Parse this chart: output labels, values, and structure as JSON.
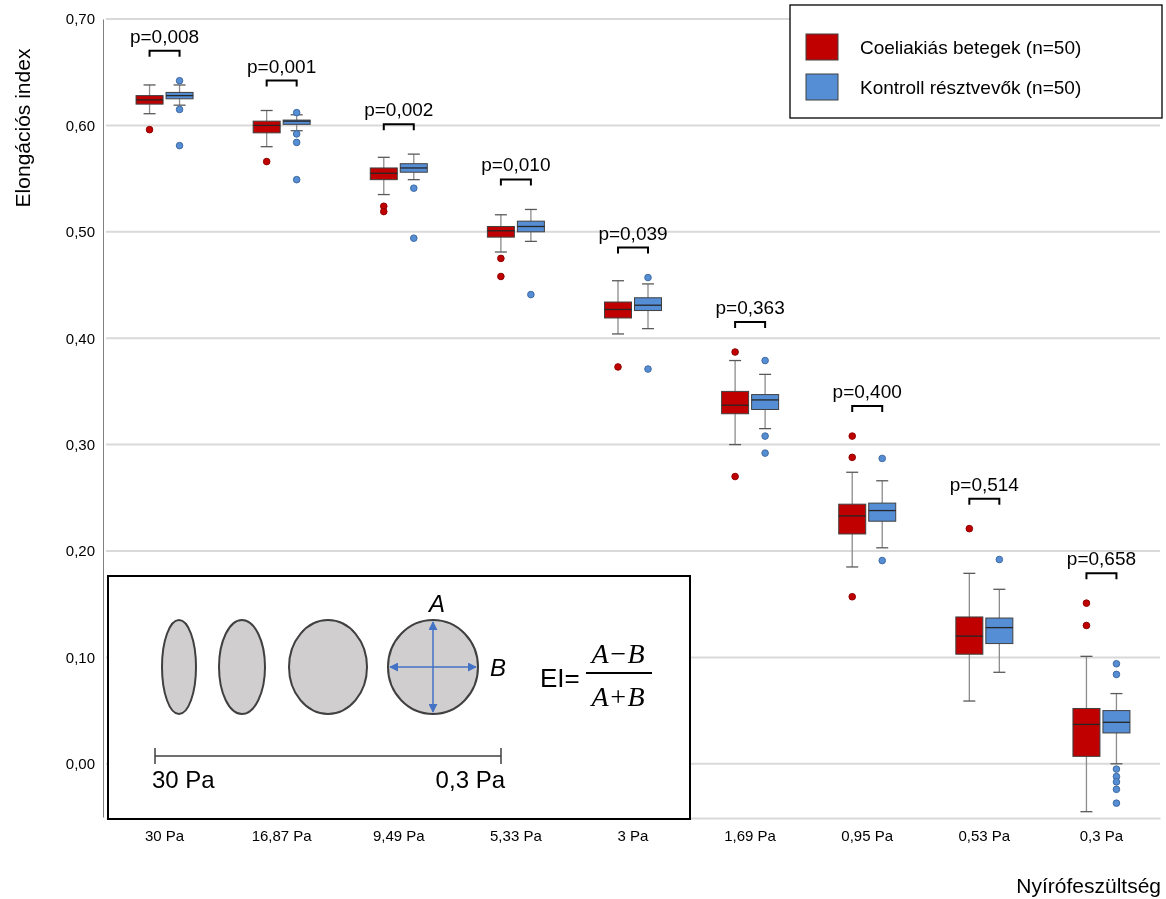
{
  "chart_data": {
    "type": "box",
    "ylabel": "Elongációs index",
    "xlabel": "Nyírófeszültség",
    "categories": [
      "30 Pa",
      "16,87 Pa",
      "9,49 Pa",
      "5,33 Pa",
      "3 Pa",
      "1,69 Pa",
      "0,95 Pa",
      "0,53 Pa",
      "0,3 Pa"
    ],
    "ylim": [
      -0.05,
      0.7
    ],
    "yticks": [
      {
        "value": 0,
        "label": "0,00"
      },
      {
        "value": 0.1,
        "label": "0,10"
      },
      {
        "value": 0.2,
        "label": "0,20"
      },
      {
        "value": 0.3,
        "label": "0,30"
      },
      {
        "value": 0.4,
        "label": "0,40"
      },
      {
        "value": 0.5,
        "label": "0,50"
      },
      {
        "value": 0.6,
        "label": "0,60"
      },
      {
        "value": 0.7,
        "label": "0,70"
      }
    ],
    "grid": "y",
    "legend": "top right",
    "series": [
      {
        "name": "Coeliakiás betegek (n=50)",
        "color": "#c00000",
        "boxes": [
          {
            "low": 0.611,
            "q1": 0.62,
            "median": 0.624,
            "q3": 0.628,
            "high": 0.638,
            "outliers": [
              0.596
            ]
          },
          {
            "low": 0.58,
            "q1": 0.593,
            "median": 0.6,
            "q3": 0.604,
            "high": 0.614,
            "outliers": [
              0.566
            ]
          },
          {
            "low": 0.535,
            "q1": 0.549,
            "median": 0.555,
            "q3": 0.56,
            "high": 0.57,
            "outliers": [
              0.524,
              0.519
            ]
          },
          {
            "low": 0.481,
            "q1": 0.495,
            "median": 0.501,
            "q3": 0.505,
            "high": 0.516,
            "outliers": [
              0.475,
              0.458
            ]
          },
          {
            "low": 0.404,
            "q1": 0.419,
            "median": 0.427,
            "q3": 0.434,
            "high": 0.454,
            "outliers": [
              0.373
            ]
          },
          {
            "low": 0.3,
            "q1": 0.329,
            "median": 0.337,
            "q3": 0.35,
            "high": 0.379,
            "outliers": [
              0.387,
              0.27
            ]
          },
          {
            "low": 0.185,
            "q1": 0.216,
            "median": 0.233,
            "q3": 0.244,
            "high": 0.274,
            "outliers": [
              0.308,
              0.288,
              0.157
            ]
          },
          {
            "low": 0.059,
            "q1": 0.103,
            "median": 0.12,
            "q3": 0.138,
            "high": 0.179,
            "outliers": [
              0.221
            ]
          },
          {
            "low": -0.045,
            "q1": 0.007,
            "median": 0.037,
            "q3": 0.052,
            "high": 0.101,
            "outliers": [
              0.151,
              0.13
            ]
          }
        ]
      },
      {
        "name": "Kontroll résztvevők (n=50)",
        "color": "#558ed5",
        "boxes": [
          {
            "low": 0.619,
            "q1": 0.625,
            "median": 0.628,
            "q3": 0.631,
            "high": 0.638,
            "outliers": [
              0.642,
              0.615,
              0.581
            ]
          },
          {
            "low": 0.595,
            "q1": 0.601,
            "median": 0.604,
            "q3": 0.605,
            "high": 0.61,
            "outliers": [
              0.612,
              0.592,
              0.584,
              0.549
            ]
          },
          {
            "low": 0.549,
            "q1": 0.556,
            "median": 0.56,
            "q3": 0.564,
            "high": 0.573,
            "outliers": [
              0.541,
              0.494
            ]
          },
          {
            "low": 0.491,
            "q1": 0.5,
            "median": 0.505,
            "q3": 0.51,
            "high": 0.521,
            "outliers": [
              0.441
            ]
          },
          {
            "low": 0.409,
            "q1": 0.426,
            "median": 0.431,
            "q3": 0.438,
            "high": 0.451,
            "outliers": [
              0.457,
              0.371
            ]
          },
          {
            "low": 0.315,
            "q1": 0.333,
            "median": 0.342,
            "q3": 0.347,
            "high": 0.366,
            "outliers": [
              0.379,
              0.308,
              0.292
            ]
          },
          {
            "low": 0.203,
            "q1": 0.228,
            "median": 0.238,
            "q3": 0.245,
            "high": 0.266,
            "outliers": [
              0.287,
              0.191
            ]
          },
          {
            "low": 0.086,
            "q1": 0.113,
            "median": 0.128,
            "q3": 0.137,
            "high": 0.164,
            "outliers": [
              0.192
            ]
          },
          {
            "low": 0.0,
            "q1": 0.029,
            "median": 0.039,
            "q3": 0.05,
            "high": 0.066,
            "outliers": [
              0.094,
              0.084,
              -0.005,
              -0.012,
              -0.017,
              -0.024,
              -0.037
            ]
          }
        ]
      }
    ],
    "annotations": [
      "p=0,008",
      "p=0,001",
      "p=0,002",
      "p=0,010",
      "p=0,039",
      "p=0,363",
      "p=0,400",
      "p=0,514",
      "p=0,658",
      "A",
      "B",
      "EI=",
      "A−B",
      "A+B",
      "30 Pa",
      "0,3 Pa"
    ]
  }
}
